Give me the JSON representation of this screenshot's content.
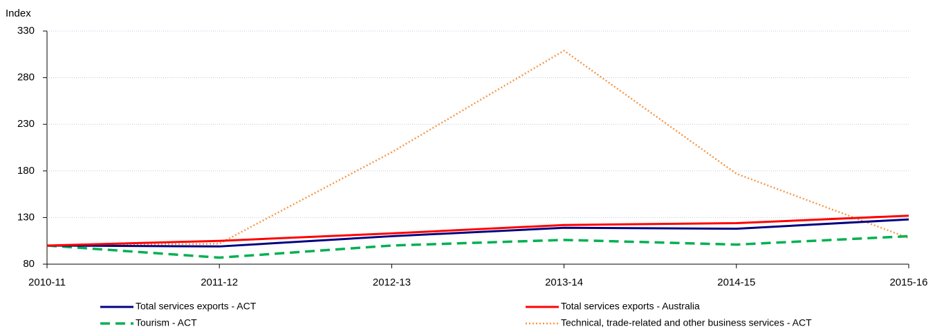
{
  "chart_data": {
    "type": "line",
    "y_label": "Index",
    "categories": [
      "2010-11",
      "2011-12",
      "2012-13",
      "2013-14",
      "2014-15",
      "2015-16"
    ],
    "series": [
      {
        "name": "Total services exports - ACT",
        "color": "#000080",
        "style": "solid",
        "values": [
          100,
          99,
          110,
          119,
          118,
          128
        ]
      },
      {
        "name": "Total services exports - Australia",
        "color": "#ff0000",
        "style": "solid",
        "values": [
          100,
          105,
          113,
          122,
          124,
          132
        ]
      },
      {
        "name": "Tourism - ACT",
        "color": "#00b050",
        "style": "dashed",
        "values": [
          100,
          87,
          100,
          106,
          101,
          110
        ]
      },
      {
        "name": "Technical, trade-related and other business services - ACT",
        "color": "#f79646",
        "style": "dotted",
        "values": [
          100,
          102,
          200,
          309,
          177,
          108
        ]
      }
    ],
    "ylim": [
      80,
      330
    ],
    "yticks": [
      80,
      130,
      180,
      230,
      280,
      330
    ],
    "grid": true
  }
}
